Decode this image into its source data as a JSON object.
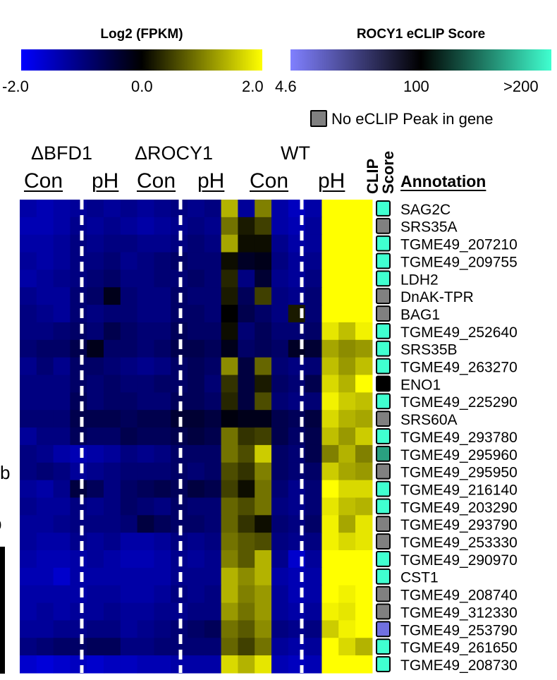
{
  "legends": {
    "expression": {
      "title": "Log2 (FPKM)",
      "ticks": [
        "-2.0",
        "0.0",
        "2.0"
      ],
      "colors": [
        "#0000ff",
        "#000000",
        "#ffff00"
      ]
    },
    "eclip": {
      "title": "ROCY1 eCLIP Score",
      "ticks": [
        "4.6",
        "100",
        ">200"
      ],
      "colors": [
        "#8080ff",
        "#000000",
        "#40ffd0"
      ],
      "no_peak_label": "No eCLIP Peak in gene",
      "no_peak_color": "#808080"
    }
  },
  "columns": {
    "groups": [
      "ΔBFD1",
      "ΔROCY1",
      "WT"
    ],
    "conditions": [
      "Con",
      "pH",
      "Con",
      "pH",
      "Con",
      "pH"
    ],
    "clip_header_1": "CLIP",
    "clip_header_2": "Score",
    "annotation_header": "Annotation"
  },
  "side_labels": [
    "b",
    "b"
  ],
  "chart_data": {
    "type": "heatmap",
    "title": "",
    "scale": {
      "min": -2.0,
      "mid": 0.0,
      "max": 2.0
    },
    "genes": [
      "SAG2C",
      "SRS35A",
      "TGME49_207210",
      "TGME49_209755",
      "LDH2",
      "DnAK-TPR",
      "BAG1",
      "TGME49_252640",
      "SRS35B",
      "TGME49_263270",
      "ENO1",
      "TGME49_225290",
      "SRS60A",
      "TGME49_293780",
      "TGME49_295960",
      "TGME49_295950",
      "TGME49_216140",
      "TGME49_203290",
      "TGME49_293790",
      "TGME49_253330",
      "TGME49_290970",
      "CST1",
      "TGME49_208740",
      "TGME49_312330",
      "TGME49_253790",
      "TGME49_261650",
      "TGME49_208730"
    ],
    "clip_score": [
      "high",
      "none",
      "high",
      "high",
      "high",
      "none",
      "none",
      "high",
      "high",
      "high",
      "mid",
      "high",
      "none",
      "high",
      "medhigh",
      "none",
      "high",
      "high",
      "none",
      "none",
      "high",
      "high",
      "none",
      "none",
      "low",
      "high",
      "high"
    ],
    "values": [
      [
        -1.3,
        -1.4,
        -1.3,
        -1.2,
        -1.1,
        -1.2,
        -1.1,
        -1.2,
        -1.1,
        -1.0,
        -1.1,
        -1.0,
        1.4,
        -1.2,
        1.0,
        -1.3,
        -1.5,
        -1.3,
        2.0,
        2.0,
        2.0
      ],
      [
        -1.4,
        -1.4,
        -1.3,
        -1.1,
        -1.2,
        -1.1,
        -1.2,
        -1.3,
        -1.2,
        -1.1,
        -1.0,
        -1.1,
        0.9,
        0.2,
        0.5,
        -1.3,
        -1.4,
        -1.2,
        2.0,
        2.0,
        2.0
      ],
      [
        -1.3,
        -1.3,
        -1.2,
        -1.0,
        -1.1,
        -1.0,
        -1.0,
        -1.1,
        -1.1,
        -1.0,
        -0.9,
        -1.0,
        1.3,
        0.1,
        0.1,
        -1.1,
        -1.3,
        -1.2,
        2.0,
        2.0,
        2.0
      ],
      [
        -1.2,
        -1.3,
        -1.2,
        -1.0,
        -1.0,
        -0.9,
        -1.1,
        -1.0,
        -0.9,
        -0.8,
        -0.9,
        -0.9,
        0.1,
        -0.3,
        -0.2,
        -1.0,
        -1.2,
        -1.1,
        2.0,
        2.0,
        2.0
      ],
      [
        -1.3,
        -1.2,
        -1.1,
        -1.0,
        -0.9,
        -0.8,
        -1.0,
        -1.0,
        -0.9,
        -0.9,
        -0.8,
        -0.9,
        0.3,
        -1.0,
        -0.4,
        -1.1,
        -1.2,
        -1.0,
        2.0,
        2.0,
        2.0
      ],
      [
        -1.1,
        -1.2,
        -1.2,
        -0.9,
        -0.8,
        -0.2,
        -0.9,
        -1.0,
        -1.0,
        -0.8,
        -0.9,
        -0.9,
        0.2,
        -0.7,
        0.5,
        -1.0,
        -1.1,
        -0.9,
        2.0,
        2.0,
        2.0
      ],
      [
        -1.0,
        -1.1,
        -1.2,
        -0.9,
        -1.0,
        -0.9,
        -0.9,
        -1.0,
        -1.0,
        -0.8,
        -0.8,
        -0.9,
        0.0,
        -0.6,
        -0.8,
        -1.0,
        0.2,
        -0.9,
        2.0,
        2.0,
        2.0
      ],
      [
        -1.0,
        -1.0,
        -0.9,
        -0.8,
        -0.9,
        -0.6,
        -0.8,
        -0.9,
        -0.9,
        -0.7,
        -0.8,
        -0.8,
        0.1,
        -0.9,
        -0.7,
        -0.9,
        -0.9,
        -0.8,
        1.8,
        1.5,
        1.9
      ],
      [
        -0.9,
        -0.8,
        -0.8,
        -0.6,
        -0.2,
        -0.8,
        -0.8,
        -0.9,
        -0.8,
        -0.6,
        -0.6,
        -0.7,
        -0.2,
        -0.8,
        -0.7,
        -0.8,
        -0.3,
        -0.4,
        1.3,
        1.1,
        1.2
      ],
      [
        -1.1,
        -0.9,
        -1.1,
        -0.8,
        -0.8,
        -0.9,
        -1.0,
        -1.1,
        -1.0,
        -0.8,
        -0.7,
        -0.8,
        1.1,
        -0.5,
        0.8,
        -0.9,
        -1.0,
        -0.9,
        1.5,
        1.2,
        1.5
      ],
      [
        -1.0,
        -1.0,
        -1.0,
        -0.8,
        -0.9,
        -0.8,
        -0.9,
        -0.9,
        -0.8,
        -0.8,
        -0.7,
        -0.9,
        0.4,
        -0.5,
        0.2,
        -0.8,
        -0.9,
        -0.6,
        1.7,
        1.4,
        2.0
      ],
      [
        -1.0,
        -1.0,
        -1.0,
        -0.7,
        -0.9,
        -0.8,
        -0.8,
        -0.9,
        -0.9,
        -0.7,
        -0.7,
        -0.8,
        0.3,
        -0.5,
        0.6,
        -0.9,
        -1.0,
        -0.9,
        1.9,
        1.6,
        1.5
      ],
      [
        -0.9,
        -0.9,
        -0.9,
        -0.6,
        -0.6,
        -0.6,
        -0.7,
        -0.6,
        -0.6,
        -0.4,
        -0.4,
        -0.5,
        -0.1,
        -0.2,
        -0.2,
        -0.6,
        -0.7,
        -0.5,
        1.7,
        1.4,
        1.3
      ],
      [
        -1.2,
        -1.0,
        -1.0,
        -0.7,
        -0.8,
        -0.8,
        -0.6,
        -0.7,
        -0.7,
        -0.6,
        -0.5,
        -0.6,
        0.9,
        0.4,
        0.5,
        -0.6,
        -0.8,
        -0.6,
        1.5,
        1.2,
        1.6
      ],
      [
        -1.0,
        -1.1,
        -1.3,
        -1.4,
        -1.3,
        -1.2,
        -1.0,
        -1.1,
        -1.0,
        -0.8,
        -0.8,
        -0.8,
        0.9,
        0.6,
        1.6,
        -0.8,
        -0.9,
        -0.6,
        1.0,
        1.4,
        1.0
      ],
      [
        -1.0,
        -0.9,
        -1.0,
        -1.2,
        -1.1,
        -1.0,
        -0.9,
        -0.9,
        -0.9,
        -0.8,
        -0.9,
        -0.8,
        0.6,
        0.4,
        1.0,
        -0.8,
        -0.9,
        -0.8,
        1.6,
        1.3,
        1.2
      ],
      [
        -1.2,
        -1.3,
        -1.1,
        -0.5,
        -0.7,
        -1.0,
        -0.8,
        -0.7,
        -0.6,
        -0.7,
        -0.5,
        -0.6,
        0.5,
        0.1,
        0.9,
        -0.9,
        -1.1,
        -0.9,
        2.0,
        1.7,
        1.7
      ],
      [
        -1.1,
        -1.2,
        -1.2,
        -1.0,
        -1.1,
        -1.0,
        -0.8,
        -0.9,
        -1.0,
        -0.8,
        -0.9,
        -0.9,
        0.8,
        0.6,
        0.9,
        -1.0,
        -1.1,
        -0.9,
        1.8,
        1.5,
        1.4
      ],
      [
        -1.2,
        -1.2,
        -1.1,
        -1.0,
        -1.0,
        -1.0,
        -0.9,
        -0.5,
        -0.7,
        -0.8,
        -0.8,
        -0.9,
        0.8,
        0.4,
        0.1,
        -0.9,
        -1.0,
        -0.8,
        1.9,
        1.3,
        1.8
      ],
      [
        -1.2,
        -1.3,
        -1.3,
        -1.1,
        -1.2,
        -1.1,
        -1.3,
        -1.3,
        -1.2,
        -1.0,
        -1.1,
        -1.0,
        0.9,
        0.7,
        0.6,
        -1.0,
        -1.1,
        -1.0,
        1.9,
        1.7,
        1.8
      ],
      [
        -1.3,
        -1.4,
        -1.4,
        -1.3,
        -1.2,
        -1.3,
        -1.4,
        -1.4,
        -1.3,
        -1.1,
        -1.2,
        -1.1,
        1.0,
        0.7,
        1.4,
        -1.1,
        -1.6,
        -1.2,
        2.0,
        2.0,
        2.0
      ],
      [
        -1.4,
        -1.4,
        -1.6,
        -1.3,
        -1.3,
        -1.3,
        -1.3,
        -1.3,
        -1.3,
        -1.1,
        -1.1,
        -1.1,
        1.4,
        1.1,
        1.4,
        -1.3,
        -1.4,
        -1.3,
        2.0,
        2.0,
        2.0
      ],
      [
        -1.3,
        -1.3,
        -1.3,
        -1.3,
        -1.2,
        -1.2,
        -1.3,
        -1.3,
        -1.2,
        -1.0,
        -1.1,
        -1.0,
        1.4,
        1.0,
        1.2,
        -1.2,
        -1.4,
        -1.3,
        2.0,
        1.9,
        2.0
      ],
      [
        -1.3,
        -1.2,
        -1.3,
        -1.2,
        -1.2,
        -1.1,
        -1.2,
        -1.2,
        -1.1,
        -1.1,
        -1.0,
        -1.0,
        1.2,
        0.9,
        1.2,
        -1.2,
        -1.3,
        -1.2,
        1.9,
        1.8,
        2.0
      ],
      [
        -1.2,
        -1.2,
        -1.1,
        -1.1,
        -1.0,
        -1.0,
        -1.2,
        -1.1,
        -1.0,
        -0.9,
        -0.8,
        -0.7,
        0.9,
        0.7,
        1.1,
        -1.0,
        -1.1,
        -1.0,
        1.6,
        1.9,
        2.0
      ],
      [
        -1.0,
        -0.9,
        -0.8,
        -0.8,
        -0.7,
        -0.7,
        -1.0,
        -1.0,
        -0.9,
        -0.9,
        -0.9,
        -0.9,
        0.8,
        0.5,
        0.9,
        -1.2,
        -1.3,
        -1.2,
        2.0,
        1.7,
        1.4
      ],
      [
        -1.6,
        -1.7,
        -1.6,
        -1.5,
        -1.6,
        -1.5,
        -1.5,
        -1.4,
        -1.4,
        -1.3,
        -1.3,
        -1.3,
        1.7,
        1.4,
        1.8,
        -1.4,
        -1.5,
        -1.4,
        2.0,
        2.0,
        2.0
      ]
    ]
  }
}
